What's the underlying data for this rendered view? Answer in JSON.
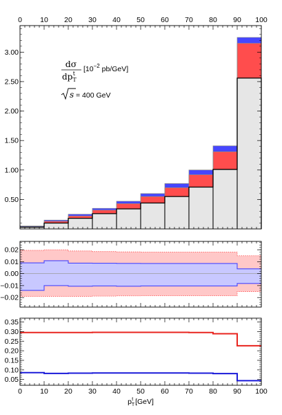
{
  "chart_data": [
    {
      "type": "bar",
      "panel": "main",
      "x_edges": [
        0,
        10,
        20,
        30,
        40,
        50,
        60,
        70,
        80,
        90,
        100
      ],
      "xlim": [
        0,
        100
      ],
      "ylim": [
        0,
        3.45
      ],
      "x_ticks": [
        "0",
        "10",
        "20",
        "30",
        "40",
        "50",
        "60",
        "70",
        "80",
        "90",
        "100"
      ],
      "y_ticks": [
        {
          "v": 0.5,
          "label": "0.50"
        },
        {
          "v": 1.0,
          "label": "1.00"
        },
        {
          "v": 1.5,
          "label": "1.50"
        },
        {
          "v": 2.0,
          "label": "2.00"
        },
        {
          "v": 2.5,
          "label": "2.50"
        },
        {
          "v": 3.0,
          "label": "3.00"
        }
      ],
      "series": [
        {
          "values": [
            0.03,
            0.1,
            0.18,
            0.26,
            0.34,
            0.44,
            0.55,
            0.71,
            1.01,
            2.56
          ]
        },
        {
          "values": [
            0.04,
            0.13,
            0.22,
            0.32,
            0.43,
            0.55,
            0.7,
            0.92,
            1.31,
            3.15
          ]
        },
        {
          "values": [
            0.05,
            0.15,
            0.25,
            0.35,
            0.47,
            0.6,
            0.77,
            1.0,
            1.41,
            3.25
          ]
        }
      ],
      "colors": {
        "base": "#e6e6e6",
        "mid": "#ff4d4d",
        "top": "#4646ff"
      },
      "annotation": {
        "num": "dσ",
        "den": "dp",
        "den_sub": "T",
        "den_sup": "t",
        "unit_pre": "[10",
        "unit_exp": "−2",
        "unit_post": " pb/GeV]",
        "sqrt_lhs": "s",
        "sqrt_rhs": " = 400 GeV"
      }
    },
    {
      "type": "area",
      "panel": "relative-band",
      "xlim": [
        0,
        100
      ],
      "ylim": [
        -0.028,
        0.027
      ],
      "y_ticks": [
        {
          "v": 0.02,
          "label": "0.02"
        },
        {
          "v": 0.01,
          "label": "0.01"
        },
        {
          "v": 0.0,
          "label": "0.00"
        },
        {
          "v": -0.01,
          "label": "−0.01"
        },
        {
          "v": -0.02,
          "label": "−0.02"
        }
      ],
      "series": [
        {
          "color": "#ff4d4d",
          "upper": [
            0.0195,
            0.02,
            0.019,
            0.0185,
            0.0182,
            0.018,
            0.018,
            0.018,
            0.018,
            0.015
          ],
          "lower": [
            -0.019,
            -0.019,
            -0.019,
            -0.0188,
            -0.0186,
            -0.0185,
            -0.0185,
            -0.0185,
            -0.0185,
            -0.015
          ]
        },
        {
          "color": "#4646ff",
          "upper": [
            0.009,
            0.0108,
            0.0088,
            0.0087,
            0.0086,
            0.0085,
            0.0085,
            0.0085,
            0.0085,
            0.004
          ],
          "lower": [
            -0.014,
            -0.01,
            -0.0105,
            -0.0103,
            -0.0105,
            -0.0103,
            -0.0103,
            -0.0103,
            -0.0103,
            -0.0082
          ]
        }
      ]
    },
    {
      "type": "line",
      "panel": "ratio",
      "xlim": [
        0,
        100
      ],
      "ylim": [
        0.02,
        0.37
      ],
      "y_ticks": [
        {
          "v": 0.05,
          "label": "0.05"
        },
        {
          "v": 0.1,
          "label": "0.10"
        },
        {
          "v": 0.15,
          "label": "0.15"
        },
        {
          "v": 0.2,
          "label": "0.20"
        },
        {
          "v": 0.25,
          "label": "0.25"
        },
        {
          "v": 0.3,
          "label": "0.30"
        },
        {
          "v": 0.35,
          "label": "0.35"
        }
      ],
      "xlabel_main": "p",
      "xlabel_sub": "T",
      "xlabel_sup": "t",
      "xlabel_unit": " [GeV]",
      "series": [
        {
          "color": "#e8231d",
          "values": [
            0.295,
            0.295,
            0.295,
            0.296,
            0.296,
            0.296,
            0.296,
            0.295,
            0.289,
            0.226
          ]
        },
        {
          "color": "#1a1ad9",
          "values": [
            0.086,
            0.082,
            0.083,
            0.084,
            0.084,
            0.084,
            0.084,
            0.083,
            0.081,
            0.044
          ]
        }
      ]
    }
  ]
}
